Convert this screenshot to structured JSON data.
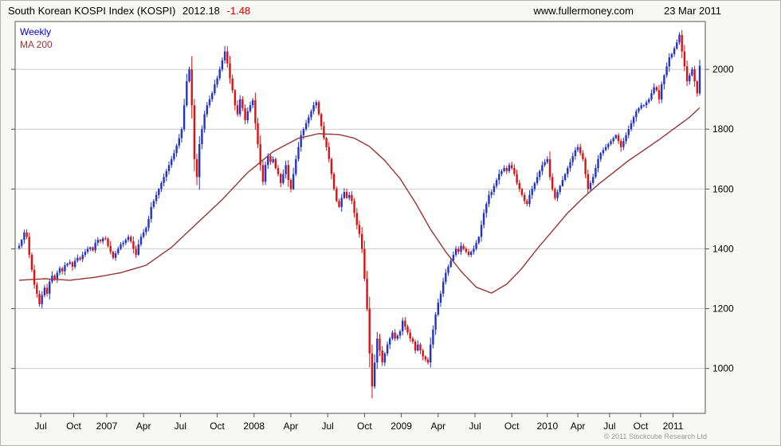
{
  "header": {
    "title": "South Korean KOSPI Index (KOSPI)",
    "last_price": "2012.18",
    "change": "-1.48",
    "website": "www.fullermoney.com",
    "date": "23 Mar 2011"
  },
  "legend": {
    "weekly": "Weekly",
    "ma": "MA 200"
  },
  "footer": {
    "copyright": "© 2011 Stockcube Research Ltd"
  },
  "colors": {
    "up_candle": "#2233cc",
    "down_candle": "#dd1111",
    "ma_line": "#993333",
    "grid": "#cccccc",
    "plot_border": "#555555",
    "axis_text": "#000000",
    "negative_text": "#d40000"
  },
  "chart_data": {
    "type": "candlestick",
    "title": "South Korean KOSPI Index (KOSPI)",
    "timeframe": "Weekly",
    "as_of": "23 Mar 2011",
    "last_close": 2012.18,
    "change": -1.48,
    "ylim": [
      850,
      2160
    ],
    "y_ticks": [
      1000,
      1200,
      1400,
      1600,
      1800,
      2000
    ],
    "grid": true,
    "legend_position": "top-left",
    "x_ticks": [
      {
        "week": 8.5,
        "label": "Jul"
      },
      {
        "week": 21.5,
        "label": "Oct"
      },
      {
        "week": 34.5,
        "label": "2007"
      },
      {
        "week": 49,
        "label": "Apr"
      },
      {
        "week": 63.5,
        "label": "Jul"
      },
      {
        "week": 78,
        "label": "Oct"
      },
      {
        "week": 92.5,
        "label": "2008"
      },
      {
        "week": 107,
        "label": "Apr"
      },
      {
        "week": 121.5,
        "label": "Jul"
      },
      {
        "week": 136,
        "label": "Oct"
      },
      {
        "week": 150.5,
        "label": "2009"
      },
      {
        "week": 165,
        "label": "Apr"
      },
      {
        "week": 179.5,
        "label": "Jul"
      },
      {
        "week": 194,
        "label": "Oct"
      },
      {
        "week": 208,
        "label": "2010"
      },
      {
        "week": 220,
        "label": "Apr"
      },
      {
        "week": 232.5,
        "label": "Jul"
      },
      {
        "week": 244.75,
        "label": "Oct"
      },
      {
        "week": 257.5,
        "label": "2011"
      }
    ],
    "weekly_closes": [
      1410,
      1430,
      1455,
      1440,
      1380,
      1330,
      1280,
      1250,
      1215,
      1245,
      1270,
      1250,
      1290,
      1310,
      1300,
      1320,
      1335,
      1325,
      1345,
      1350,
      1355,
      1340,
      1360,
      1370,
      1365,
      1380,
      1390,
      1400,
      1405,
      1395,
      1420,
      1430,
      1425,
      1435,
      1434,
      1410,
      1390,
      1370,
      1385,
      1400,
      1415,
      1420,
      1430,
      1440,
      1425,
      1400,
      1380,
      1415,
      1440,
      1455,
      1470,
      1500,
      1540,
      1560,
      1580,
      1600,
      1620,
      1640,
      1660,
      1680,
      1700,
      1720,
      1745,
      1770,
      1800,
      1880,
      1960,
      2000,
      1880,
      1700,
      1640,
      1750,
      1800,
      1850,
      1880,
      1900,
      1920,
      1950,
      1970,
      2000,
      2030,
      2060,
      2020,
      1970,
      1930,
      1880,
      1850,
      1900,
      1870,
      1830,
      1860,
      1880,
      1897,
      1820,
      1750,
      1680,
      1624,
      1680,
      1710,
      1690,
      1700,
      1670,
      1650,
      1620,
      1650,
      1680,
      1630,
      1600,
      1650,
      1700,
      1740,
      1780,
      1800,
      1820,
      1840,
      1860,
      1880,
      1890,
      1850,
      1810,
      1770,
      1740,
      1700,
      1650,
      1600,
      1560,
      1540,
      1570,
      1590,
      1570,
      1580,
      1560,
      1520,
      1480,
      1450,
      1400,
      1300,
      1200,
      1050,
      940,
      1020,
      1100,
      1060,
      1020,
      1050,
      1080,
      1100,
      1120,
      1100,
      1110,
      1124,
      1160,
      1140,
      1120,
      1100,
      1090,
      1060,
      1080,
      1060,
      1040,
      1030,
      1020,
      1080,
      1130,
      1180,
      1220,
      1250,
      1290,
      1320,
      1340,
      1360,
      1380,
      1400,
      1390,
      1410,
      1400,
      1390,
      1380,
      1390,
      1400,
      1420,
      1440,
      1480,
      1520,
      1550,
      1580,
      1590,
      1610,
      1630,
      1650,
      1660,
      1670,
      1660,
      1680,
      1670,
      1650,
      1620,
      1600,
      1580,
      1560,
      1550,
      1580,
      1600,
      1620,
      1640,
      1660,
      1680,
      1690,
      1700,
      1640,
      1600,
      1570,
      1590,
      1610,
      1630,
      1650,
      1670,
      1690,
      1710,
      1730,
      1740,
      1720,
      1700,
      1650,
      1600,
      1620,
      1640,
      1670,
      1700,
      1720,
      1730,
      1740,
      1750,
      1760,
      1770,
      1780,
      1760,
      1740,
      1760,
      1780,
      1800,
      1820,
      1840,
      1860,
      1870,
      1880,
      1880,
      1890,
      1900,
      1920,
      1940,
      1930,
      1900,
      1950,
      1980,
      2010,
      2040,
      2051,
      2070,
      2090,
      2115,
      2060,
      2010,
      1960,
      1980,
      2000,
      1960,
      1920,
      2012
    ],
    "ma200": {
      "label": "MA 200",
      "points": [
        [
          0,
          1295
        ],
        [
          10,
          1300
        ],
        [
          20,
          1295
        ],
        [
          30,
          1305
        ],
        [
          40,
          1320
        ],
        [
          50,
          1345
        ],
        [
          60,
          1405
        ],
        [
          70,
          1485
        ],
        [
          80,
          1565
        ],
        [
          90,
          1655
        ],
        [
          100,
          1725
        ],
        [
          110,
          1770
        ],
        [
          118,
          1785
        ],
        [
          126,
          1782
        ],
        [
          132,
          1770
        ],
        [
          138,
          1742
        ],
        [
          144,
          1695
        ],
        [
          150,
          1635
        ],
        [
          156,
          1555
        ],
        [
          162,
          1465
        ],
        [
          168,
          1390
        ],
        [
          174,
          1325
        ],
        [
          180,
          1272
        ],
        [
          186,
          1252
        ],
        [
          192,
          1282
        ],
        [
          198,
          1335
        ],
        [
          204,
          1400
        ],
        [
          210,
          1460
        ],
        [
          216,
          1520
        ],
        [
          222,
          1570
        ],
        [
          228,
          1615
        ],
        [
          234,
          1655
        ],
        [
          240,
          1695
        ],
        [
          246,
          1730
        ],
        [
          252,
          1765
        ],
        [
          256,
          1790
        ],
        [
          260,
          1815
        ],
        [
          264,
          1840
        ],
        [
          268,
          1872
        ]
      ]
    }
  }
}
